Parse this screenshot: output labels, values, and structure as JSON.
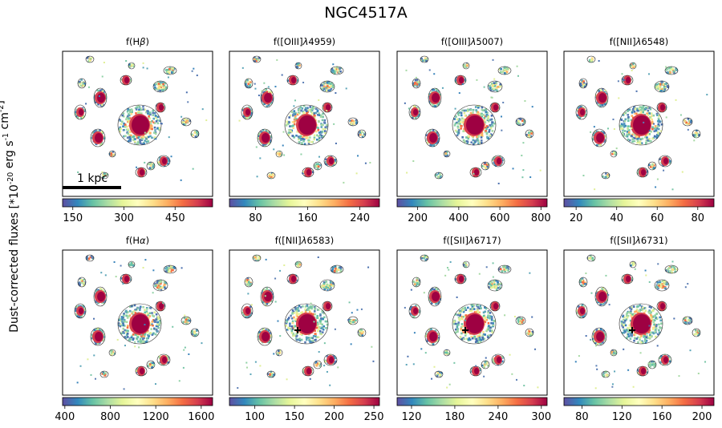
{
  "figure": {
    "title": "NGC4517A",
    "ylabel": "Dust-corrected fluxes [*10$^{-20}$ erg s$^{-1}$ cm$^{-2}$]",
    "scalebar_label": "1 kpc",
    "colormap": [
      "#5e4fa2",
      "#3288bd",
      "#66c2a5",
      "#abdda4",
      "#e6f598",
      "#ffffbf",
      "#fee08b",
      "#fdae61",
      "#f46d43",
      "#d53e4f",
      "#9e0142"
    ]
  },
  "chart_data": [
    {
      "type": "heatmap",
      "title": "f(H$\\beta$)",
      "colorbar": {
        "ticks": [
          150,
          300,
          450
        ],
        "range": [
          120,
          560
        ]
      },
      "marker": false
    },
    {
      "type": "heatmap",
      "title": "f([OIII]$\\lambda$4959)",
      "colorbar": {
        "ticks": [
          80,
          160,
          240
        ],
        "range": [
          40,
          270
        ]
      },
      "marker": false
    },
    {
      "type": "heatmap",
      "title": "f([OIII]$\\lambda$5007)",
      "colorbar": {
        "ticks": [
          200,
          400,
          600,
          800
        ],
        "range": [
          100,
          830
        ]
      },
      "marker": false
    },
    {
      "type": "heatmap",
      "title": "f([NII]$\\lambda$6548)",
      "colorbar": {
        "ticks": [
          20,
          40,
          60,
          80
        ],
        "range": [
          14,
          88
        ]
      },
      "marker": false
    },
    {
      "type": "heatmap",
      "title": "f(H$\\alpha$)",
      "colorbar": {
        "ticks": [
          400,
          800,
          1200,
          1600
        ],
        "range": [
          380,
          1700
        ]
      },
      "marker": false
    },
    {
      "type": "heatmap",
      "title": "f([NII]$\\lambda$6583)",
      "colorbar": {
        "ticks": [
          100,
          150,
          200,
          250
        ],
        "range": [
          68,
          257
        ]
      },
      "marker": true
    },
    {
      "type": "heatmap",
      "title": "f([SII]$\\lambda$6717)",
      "colorbar": {
        "ticks": [
          120,
          180,
          240,
          300
        ],
        "range": [
          100,
          308
        ]
      },
      "marker": true
    },
    {
      "type": "heatmap",
      "title": "f([SII]$\\lambda$6731)",
      "colorbar": {
        "ticks": [
          80,
          120,
          160,
          200
        ],
        "range": [
          62,
          212
        ]
      },
      "marker": true
    }
  ]
}
